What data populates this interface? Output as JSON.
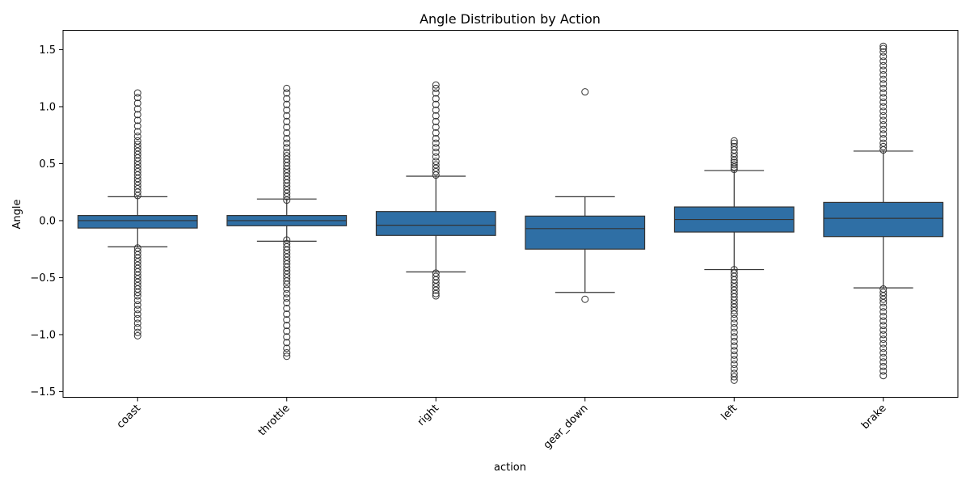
{
  "chart_data": {
    "type": "box",
    "title": "Angle Distribution by Action",
    "xlabel": "action",
    "ylabel": "Angle",
    "ylim": [
      -1.55,
      1.67
    ],
    "yticks": [
      -1.5,
      -1.0,
      -0.5,
      0.0,
      0.5,
      1.0,
      1.5
    ],
    "ytick_labels": [
      "−1.5",
      "−1.0",
      "−0.5",
      "0.0",
      "0.5",
      "1.0",
      "1.5"
    ],
    "grid": false,
    "colors": {
      "box": "#2f6fa5",
      "line": "#333333"
    },
    "categories": [
      "coast",
      "throttle",
      "right",
      "gear_down",
      "left",
      "brake"
    ],
    "boxes": [
      {
        "category": "coast",
        "whisker_low": -0.23,
        "q1": -0.065,
        "median": 0.0,
        "q3": 0.045,
        "whisker_high": 0.21,
        "outliers_high": [
          0.22,
          0.25,
          0.28,
          0.31,
          0.34,
          0.37,
          0.4,
          0.43,
          0.46,
          0.49,
          0.52,
          0.55,
          0.58,
          0.61,
          0.64,
          0.67,
          0.7,
          0.74,
          0.78,
          0.83,
          0.88,
          0.93,
          0.98,
          1.03,
          1.08,
          1.12
        ],
        "outliers_low": [
          -0.24,
          -0.27,
          -0.3,
          -0.33,
          -0.36,
          -0.39,
          -0.42,
          -0.45,
          -0.48,
          -0.51,
          -0.54,
          -0.57,
          -0.6,
          -0.63,
          -0.66,
          -0.7,
          -0.74,
          -0.78,
          -0.82,
          -0.86,
          -0.9,
          -0.94,
          -0.98,
          -1.01
        ]
      },
      {
        "category": "throttle",
        "whisker_low": -0.18,
        "q1": -0.045,
        "median": 0.0,
        "q3": 0.045,
        "whisker_high": 0.19,
        "outliers_high": [
          0.18,
          0.21,
          0.24,
          0.27,
          0.3,
          0.33,
          0.36,
          0.39,
          0.42,
          0.45,
          0.48,
          0.51,
          0.54,
          0.57,
          0.6,
          0.64,
          0.68,
          0.72,
          0.77,
          0.82,
          0.87,
          0.92,
          0.97,
          1.02,
          1.07,
          1.12,
          1.16
        ],
        "outliers_low": [
          -0.17,
          -0.2,
          -0.23,
          -0.26,
          -0.29,
          -0.32,
          -0.35,
          -0.38,
          -0.41,
          -0.44,
          -0.47,
          -0.5,
          -0.53,
          -0.56,
          -0.6,
          -0.64,
          -0.68,
          -0.72,
          -0.77,
          -0.82,
          -0.87,
          -0.92,
          -0.97,
          -1.02,
          -1.07,
          -1.12,
          -1.16,
          -1.19
        ]
      },
      {
        "category": "right",
        "whisker_low": -0.45,
        "q1": -0.13,
        "median": -0.04,
        "q3": 0.08,
        "whisker_high": 0.39,
        "outliers_high": [
          0.4,
          0.43,
          0.46,
          0.49,
          0.52,
          0.56,
          0.6,
          0.64,
          0.68,
          0.72,
          0.77,
          0.82,
          0.87,
          0.92,
          0.97,
          1.02,
          1.07,
          1.12,
          1.16,
          1.19
        ],
        "outliers_low": [
          -0.46,
          -0.49,
          -0.52,
          -0.55,
          -0.58,
          -0.61,
          -0.64,
          -0.66
        ]
      },
      {
        "category": "gear_down",
        "whisker_low": -0.63,
        "q1": -0.25,
        "median": -0.07,
        "q3": 0.04,
        "whisker_high": 0.21,
        "outliers_high": [
          1.13
        ],
        "outliers_low": [
          -0.69
        ]
      },
      {
        "category": "left",
        "whisker_low": -0.43,
        "q1": -0.1,
        "median": 0.01,
        "q3": 0.12,
        "whisker_high": 0.44,
        "outliers_high": [
          0.45,
          0.47,
          0.49,
          0.51,
          0.53,
          0.56,
          0.59,
          0.62,
          0.65,
          0.68,
          0.7
        ],
        "outliers_low": [
          -0.43,
          -0.46,
          -0.49,
          -0.52,
          -0.55,
          -0.58,
          -0.61,
          -0.64,
          -0.67,
          -0.7,
          -0.73,
          -0.76,
          -0.79,
          -0.82,
          -0.86,
          -0.9,
          -0.94,
          -0.98,
          -1.02,
          -1.06,
          -1.1,
          -1.14,
          -1.18,
          -1.22,
          -1.26,
          -1.3,
          -1.34,
          -1.37,
          -1.4
        ]
      },
      {
        "category": "brake",
        "whisker_low": -0.59,
        "q1": -0.14,
        "median": 0.02,
        "q3": 0.16,
        "whisker_high": 0.61,
        "outliers_high": [
          0.62,
          0.65,
          0.68,
          0.72,
          0.76,
          0.8,
          0.84,
          0.88,
          0.92,
          0.96,
          1.0,
          1.04,
          1.08,
          1.12,
          1.16,
          1.2,
          1.24,
          1.28,
          1.32,
          1.36,
          1.4,
          1.44,
          1.48,
          1.51,
          1.53
        ],
        "outliers_low": [
          -0.6,
          -0.63,
          -0.66,
          -0.69,
          -0.72,
          -0.76,
          -0.8,
          -0.84,
          -0.88,
          -0.92,
          -0.96,
          -1.0,
          -1.04,
          -1.08,
          -1.12,
          -1.16,
          -1.2,
          -1.24,
          -1.28,
          -1.32,
          -1.36
        ]
      }
    ]
  }
}
